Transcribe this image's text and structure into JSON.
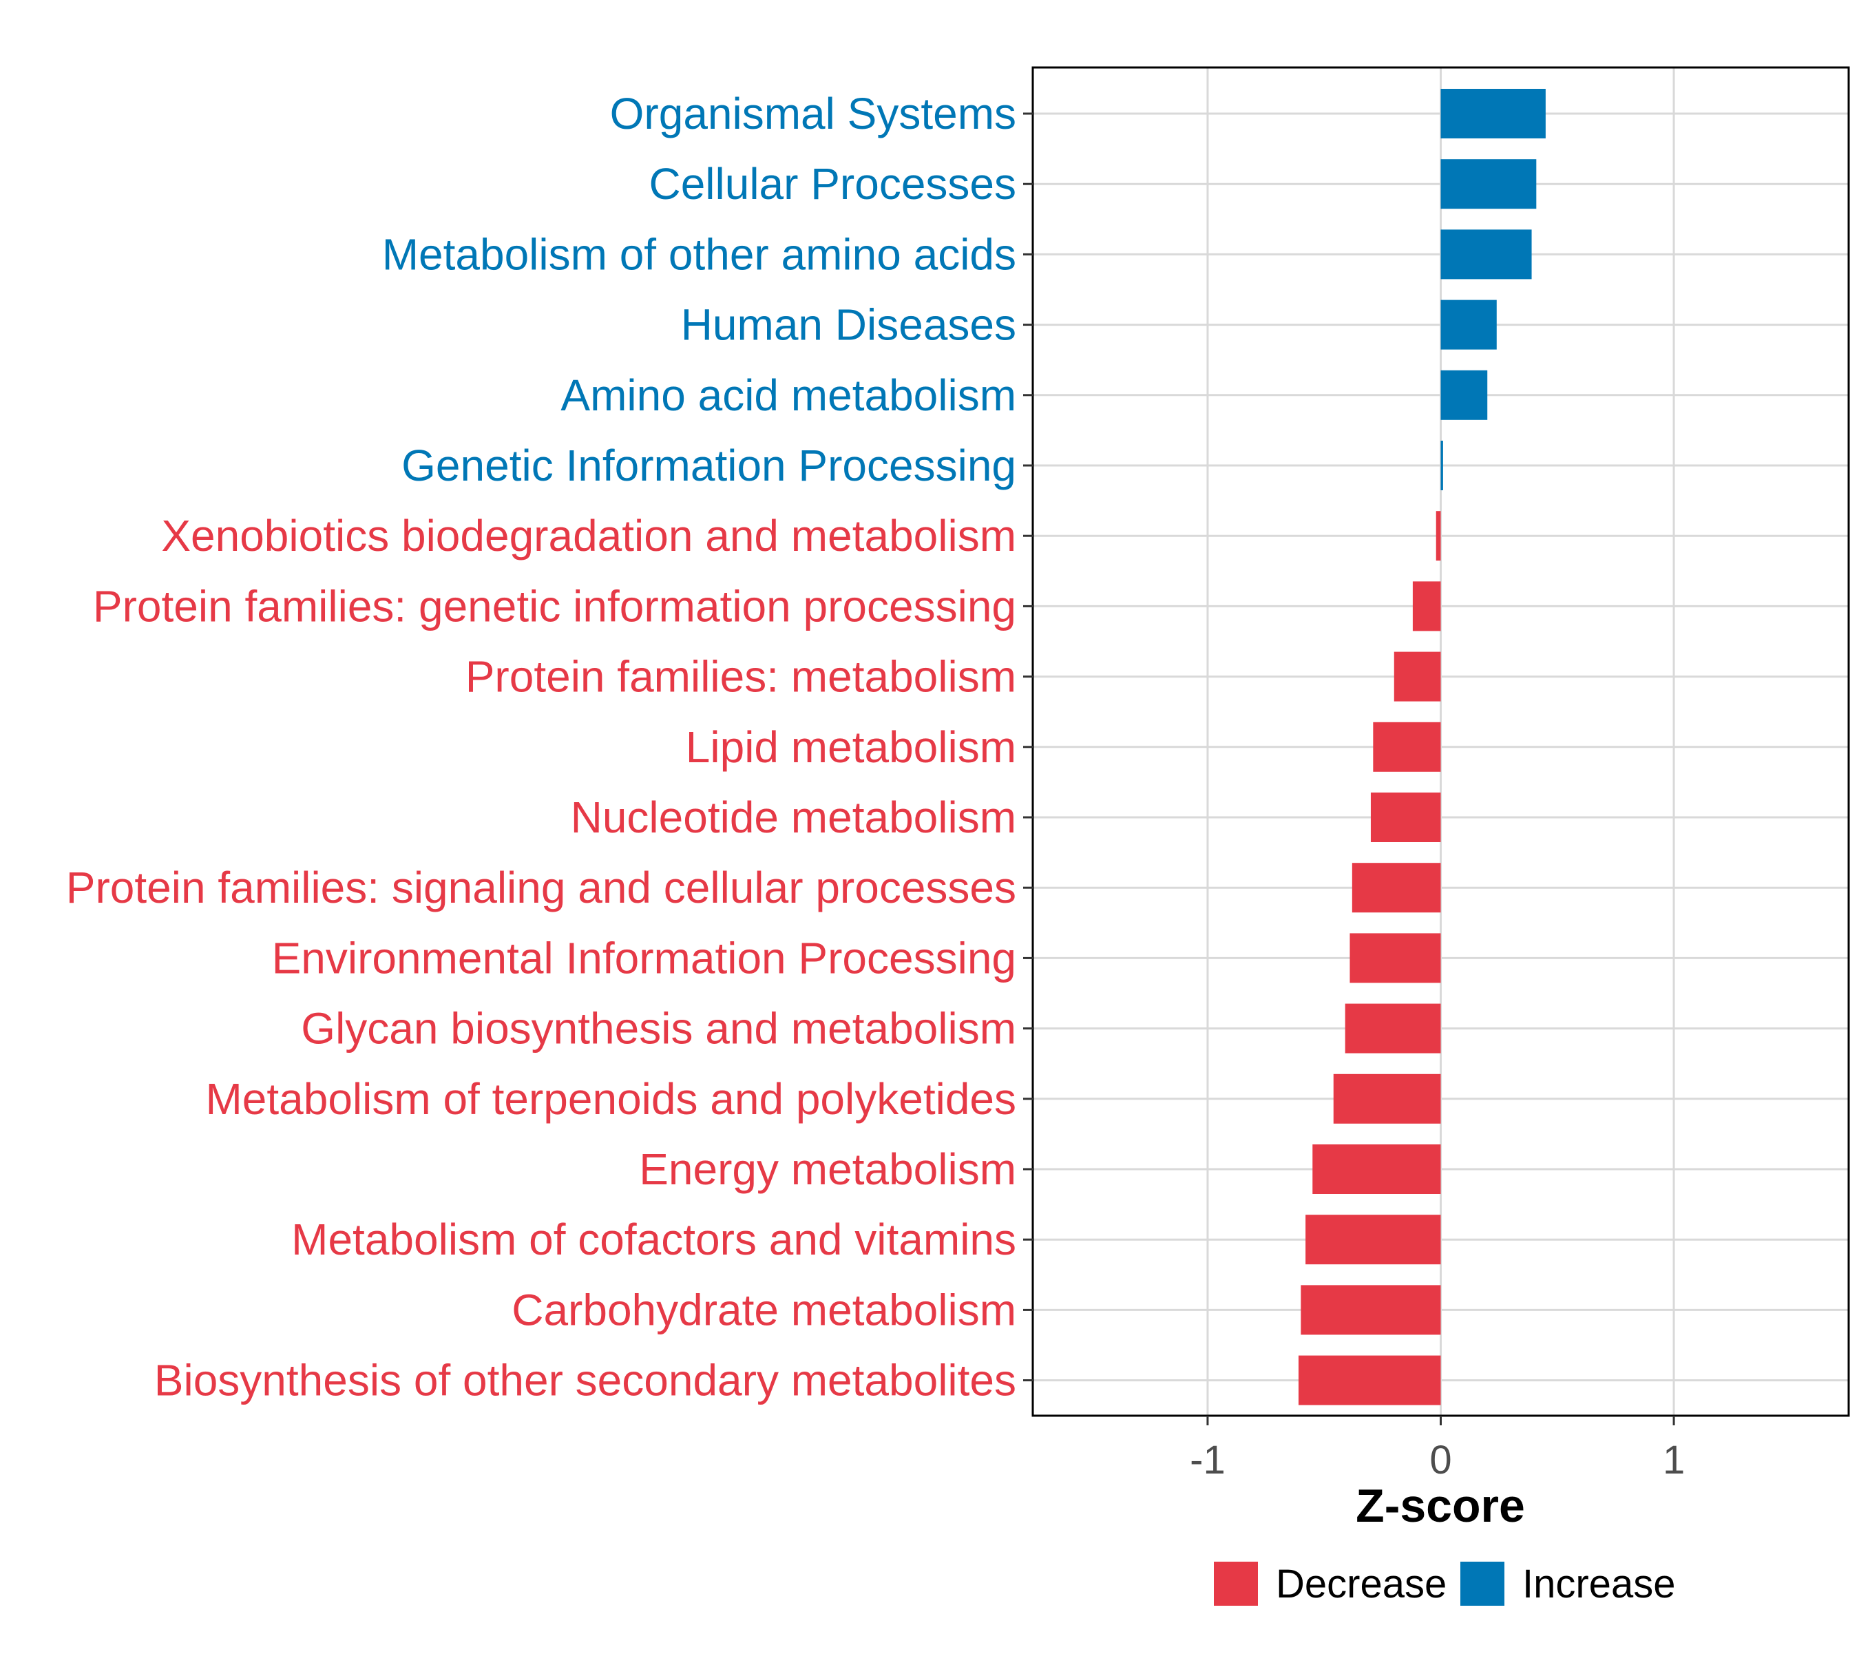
{
  "chart_data": {
    "type": "bar",
    "orientation": "horizontal",
    "title": "",
    "xlabel": "Z-score",
    "ylabel": "",
    "xlim": [
      -1.75,
      1.75
    ],
    "xticks": [
      -1,
      0,
      1
    ],
    "xtick_labels": [
      "-1",
      "0",
      "1"
    ],
    "grid": true,
    "legend_position": "bottom",
    "categories": [
      "Organismal Systems",
      "Cellular Processes",
      "Metabolism of other amino acids",
      "Human Diseases",
      "Amino acid metabolism",
      "Genetic Information Processing",
      "Xenobiotics biodegradation and metabolism",
      "Protein families: genetic information processing",
      "Protein families: metabolism",
      "Lipid metabolism",
      "Nucleotide metabolism",
      "Protein families: signaling and cellular processes",
      "Environmental Information Processing",
      "Glycan biosynthesis and metabolism",
      "Metabolism of terpenoids and polyketides",
      "Energy metabolism",
      "Metabolism of cofactors and vitamins",
      "Carbohydrate metabolism",
      "Biosynthesis of other secondary metabolites"
    ],
    "values": [
      0.45,
      0.41,
      0.39,
      0.24,
      0.2,
      0.01,
      -0.02,
      -0.12,
      -0.2,
      -0.29,
      -0.3,
      -0.38,
      -0.39,
      -0.41,
      -0.46,
      -0.55,
      -0.58,
      -0.6,
      -0.61
    ],
    "groups": [
      "Increase",
      "Increase",
      "Increase",
      "Increase",
      "Increase",
      "Increase",
      "Decrease",
      "Decrease",
      "Decrease",
      "Decrease",
      "Decrease",
      "Decrease",
      "Decrease",
      "Decrease",
      "Decrease",
      "Decrease",
      "Decrease",
      "Decrease",
      "Decrease"
    ],
    "legend": [
      {
        "label": "Decrease",
        "color": "#E63946"
      },
      {
        "label": "Increase",
        "color": "#0077B6"
      }
    ],
    "colors": {
      "Decrease": "#E63946",
      "Increase": "#0077B6"
    }
  }
}
